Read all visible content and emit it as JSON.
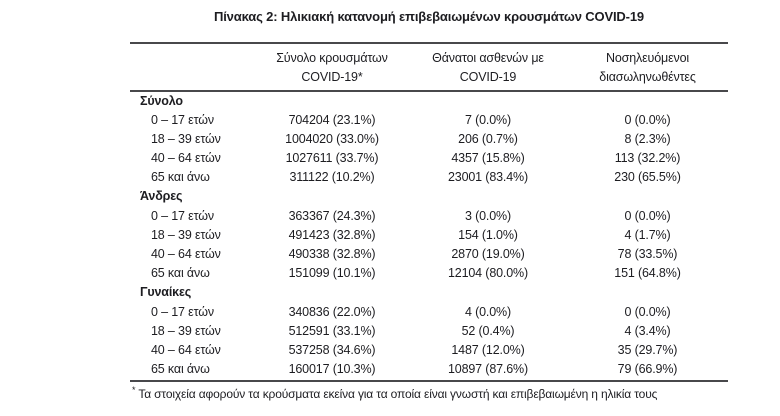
{
  "title": "Πίνακας 2: Ηλικιακή κατανομή επιβεβαιωμένων κρουσμάτων COVID-19",
  "colors": {
    "text": "#1d1d21",
    "rule": "#48484b",
    "background": "#ffffff"
  },
  "table": {
    "columns": [
      {
        "line1": "Σύνολο κρουσμάτων",
        "line2": "COVID-19*"
      },
      {
        "line1": "Θάνατοι ασθενών με",
        "line2": "COVID-19"
      },
      {
        "line1": "Νοσηλευόμενοι",
        "line2": "διασωληνωθέντες"
      }
    ],
    "sections": [
      {
        "label": "Σύνολο",
        "rows": [
          {
            "label": "0 – 17 ετών",
            "cases": "704204 (23.1%)",
            "deaths": "7 (0.0%)",
            "intubated": "0 (0.0%)"
          },
          {
            "label": "18 – 39 ετών",
            "cases": "1004020 (33.0%)",
            "deaths": "206 (0.7%)",
            "intubated": "8 (2.3%)"
          },
          {
            "label": "40 – 64 ετών",
            "cases": "1027611 (33.7%)",
            "deaths": "4357 (15.8%)",
            "intubated": "113 (32.2%)"
          },
          {
            "label": "65 και άνω",
            "cases": "311122 (10.2%)",
            "deaths": "23001 (83.4%)",
            "intubated": "230 (65.5%)"
          }
        ]
      },
      {
        "label": "Άνδρες",
        "rows": [
          {
            "label": "0 – 17 ετών",
            "cases": "363367 (24.3%)",
            "deaths": "3 (0.0%)",
            "intubated": "0 (0.0%)"
          },
          {
            "label": "18 – 39 ετών",
            "cases": "491423 (32.8%)",
            "deaths": "154 (1.0%)",
            "intubated": "4 (1.7%)"
          },
          {
            "label": "40 – 64 ετών",
            "cases": "490338 (32.8%)",
            "deaths": "2870 (19.0%)",
            "intubated": "78 (33.5%)"
          },
          {
            "label": "65 και άνω",
            "cases": "151099 (10.1%)",
            "deaths": "12104 (80.0%)",
            "intubated": "151 (64.8%)"
          }
        ]
      },
      {
        "label": "Γυναίκες",
        "rows": [
          {
            "label": "0 – 17 ετών",
            "cases": "340836 (22.0%)",
            "deaths": "4 (0.0%)",
            "intubated": "0 (0.0%)"
          },
          {
            "label": "18 – 39 ετών",
            "cases": "512591 (33.1%)",
            "deaths": "52 (0.4%)",
            "intubated": "4 (3.4%)"
          },
          {
            "label": "40 – 64 ετών",
            "cases": "537258 (34.6%)",
            "deaths": "1487 (12.0%)",
            "intubated": "35 (29.7%)"
          },
          {
            "label": "65 και άνω",
            "cases": "160017 (10.3%)",
            "deaths": "10897 (87.6%)",
            "intubated": "79 (66.9%)"
          }
        ]
      }
    ]
  },
  "footnote": {
    "marker": "*",
    "text": "Τα στοιχεία αφορούν τα κρούσματα εκείνα για τα οποία είναι γνωστή και επιβεβαιωμένη η ηλικία τους"
  }
}
